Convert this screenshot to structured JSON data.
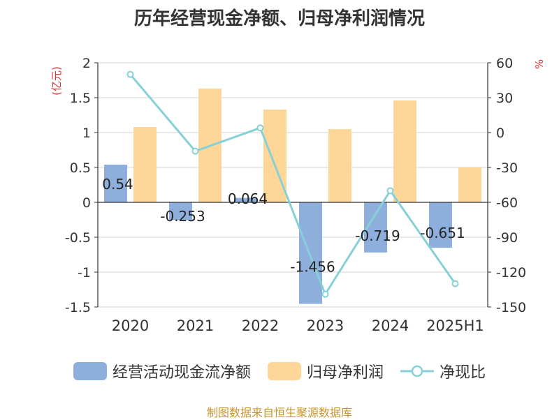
{
  "colors": {
    "cash_flow": "#8eaedc",
    "net_profit": "#fed698",
    "ratio_line": "#86d0d6",
    "unit_text": "#e03030",
    "source_text": "#c8962e"
  },
  "chart_data": {
    "type": "bar",
    "title": "历年经营现金净额、归母净利润情况",
    "categories": [
      "2020",
      "2021",
      "2022",
      "2023",
      "2024",
      "2025H1"
    ],
    "left_axis": {
      "label": "(亿元)",
      "ylim": [
        -1.5,
        2
      ],
      "ticks": [
        "2",
        "1.5",
        "1",
        "0.5",
        "0",
        "-0.5",
        "-1",
        "-1.5"
      ],
      "tick_values": [
        2,
        1.5,
        1,
        0.5,
        0,
        -0.5,
        -1,
        -1.5
      ]
    },
    "right_axis": {
      "label": "%",
      "ylim": [
        -150,
        60
      ],
      "ticks": [
        "60",
        "30",
        "0",
        "-30",
        "-60",
        "-90",
        "-120",
        "-150"
      ],
      "tick_values": [
        60,
        30,
        0,
        -30,
        -60,
        -90,
        -120,
        -150
      ]
    },
    "series": [
      {
        "name": "经营活动现金流净额",
        "type": "bar",
        "axis": "left",
        "values": [
          0.54,
          -0.253,
          0.064,
          -1.456,
          -0.719,
          -0.651
        ],
        "labels": [
          "0.54",
          "-0.253",
          "0.064",
          "-1.456",
          "-0.719",
          "-0.651"
        ]
      },
      {
        "name": "归母净利润",
        "type": "bar",
        "axis": "left",
        "values": [
          1.08,
          1.63,
          1.33,
          1.05,
          1.46,
          0.5
        ]
      },
      {
        "name": "净现比",
        "type": "line",
        "axis": "right",
        "values": [
          50,
          -16,
          4,
          -139,
          -50,
          -130
        ]
      }
    ],
    "grid": true,
    "legend_position": "bottom"
  },
  "source": "制图数据来自恒生聚源数据库"
}
